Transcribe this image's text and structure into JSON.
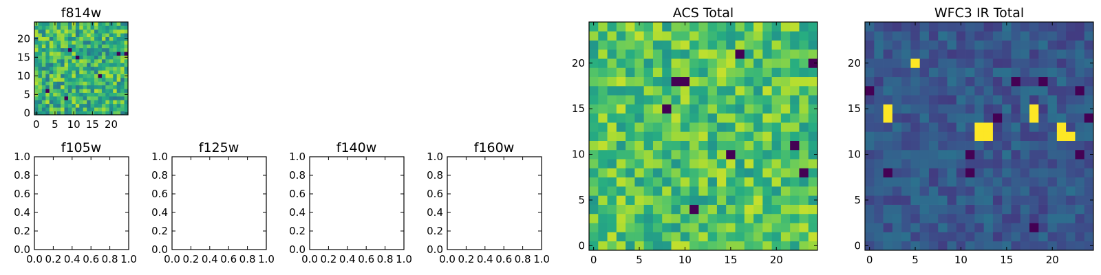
{
  "chart_data": [
    {
      "type": "heatmap",
      "title": "f814w",
      "xlim": [
        -0.5,
        24.5
      ],
      "ylim": [
        -0.5,
        24.5
      ],
      "xticks": [
        0,
        5,
        10,
        15,
        20
      ],
      "yticks": [
        0,
        5,
        10,
        15,
        20
      ],
      "colormap": "viridis",
      "grid": false,
      "rows": 25,
      "cols": 25,
      "pattern": "random-noise",
      "mean_level": 0.65,
      "spread": 0.25,
      "seed": 11,
      "dark_cells": [
        [
          8,
          4
        ],
        [
          9,
          17
        ],
        [
          11,
          15
        ],
        [
          17,
          10
        ],
        [
          24,
          16
        ],
        [
          3,
          6
        ],
        [
          22,
          16
        ]
      ]
    },
    {
      "type": "heatmap",
      "title": "ACS Total",
      "xlim": [
        -0.5,
        24.5
      ],
      "ylim": [
        -0.5,
        24.5
      ],
      "xticks": [
        0,
        5,
        10,
        15,
        20
      ],
      "yticks": [
        0,
        5,
        10,
        15,
        20
      ],
      "colormap": "viridis",
      "grid": false,
      "rows": 25,
      "cols": 25,
      "pattern": "random-noise",
      "mean_level": 0.72,
      "spread": 0.2,
      "seed": 7,
      "dark_cells": [
        [
          16,
          21
        ],
        [
          24,
          20
        ],
        [
          9,
          18
        ],
        [
          10,
          18
        ],
        [
          8,
          15
        ],
        [
          15,
          10
        ],
        [
          22,
          11
        ],
        [
          11,
          4
        ],
        [
          23,
          8
        ]
      ]
    },
    {
      "type": "heatmap",
      "title": "WFC3 IR Total",
      "xlim": [
        -0.5,
        24.5
      ],
      "ylim": [
        -0.5,
        24.5
      ],
      "xticks": [
        0,
        5,
        10,
        15,
        20
      ],
      "yticks": [
        0,
        5,
        10,
        15,
        20
      ],
      "colormap": "viridis",
      "grid": false,
      "rows": 25,
      "cols": 25,
      "pattern": "random-noise",
      "mean_level": 0.28,
      "spread": 0.1,
      "seed": 3,
      "bright_cells": [
        [
          2,
          15
        ],
        [
          2,
          14
        ],
        [
          12,
          13
        ],
        [
          13,
          13
        ],
        [
          12,
          12
        ],
        [
          13,
          12
        ],
        [
          18,
          15
        ],
        [
          18,
          14
        ],
        [
          21,
          13
        ],
        [
          21,
          12
        ],
        [
          22,
          12
        ],
        [
          5,
          20
        ]
      ],
      "dark_cells": [
        [
          0,
          17
        ],
        [
          2,
          8
        ],
        [
          11,
          8
        ],
        [
          16,
          18
        ],
        [
          19,
          18
        ],
        [
          14,
          14
        ],
        [
          23,
          17
        ],
        [
          24,
          14
        ],
        [
          11,
          10
        ],
        [
          18,
          2
        ],
        [
          23,
          10
        ]
      ]
    },
    {
      "type": "empty",
      "title": "f105w",
      "xlim": [
        0,
        1
      ],
      "ylim": [
        0,
        1
      ],
      "xticks": [
        "0.0",
        "0.2",
        "0.4",
        "0.6",
        "0.8",
        "1.0"
      ],
      "yticks": [
        "0.0",
        "0.2",
        "0.4",
        "0.6",
        "0.8",
        "1.0"
      ]
    },
    {
      "type": "empty",
      "title": "f125w",
      "xlim": [
        0,
        1
      ],
      "ylim": [
        0,
        1
      ],
      "xticks": [
        "0.0",
        "0.2",
        "0.4",
        "0.6",
        "0.8",
        "1.0"
      ],
      "yticks": [
        "0.0",
        "0.2",
        "0.4",
        "0.6",
        "0.8",
        "1.0"
      ]
    },
    {
      "type": "empty",
      "title": "f140w",
      "xlim": [
        0,
        1
      ],
      "ylim": [
        0,
        1
      ],
      "xticks": [
        "0.0",
        "0.2",
        "0.4",
        "0.6",
        "0.8",
        "1.0"
      ],
      "yticks": [
        "0.0",
        "0.2",
        "0.4",
        "0.6",
        "0.8",
        "1.0"
      ]
    },
    {
      "type": "empty",
      "title": "f160w",
      "xlim": [
        0,
        1
      ],
      "ylim": [
        0,
        1
      ],
      "xticks": [
        "0.0",
        "0.2",
        "0.4",
        "0.6",
        "0.8",
        "1.0"
      ],
      "yticks": [
        "0.0",
        "0.2",
        "0.4",
        "0.6",
        "0.8",
        "1.0"
      ]
    }
  ]
}
